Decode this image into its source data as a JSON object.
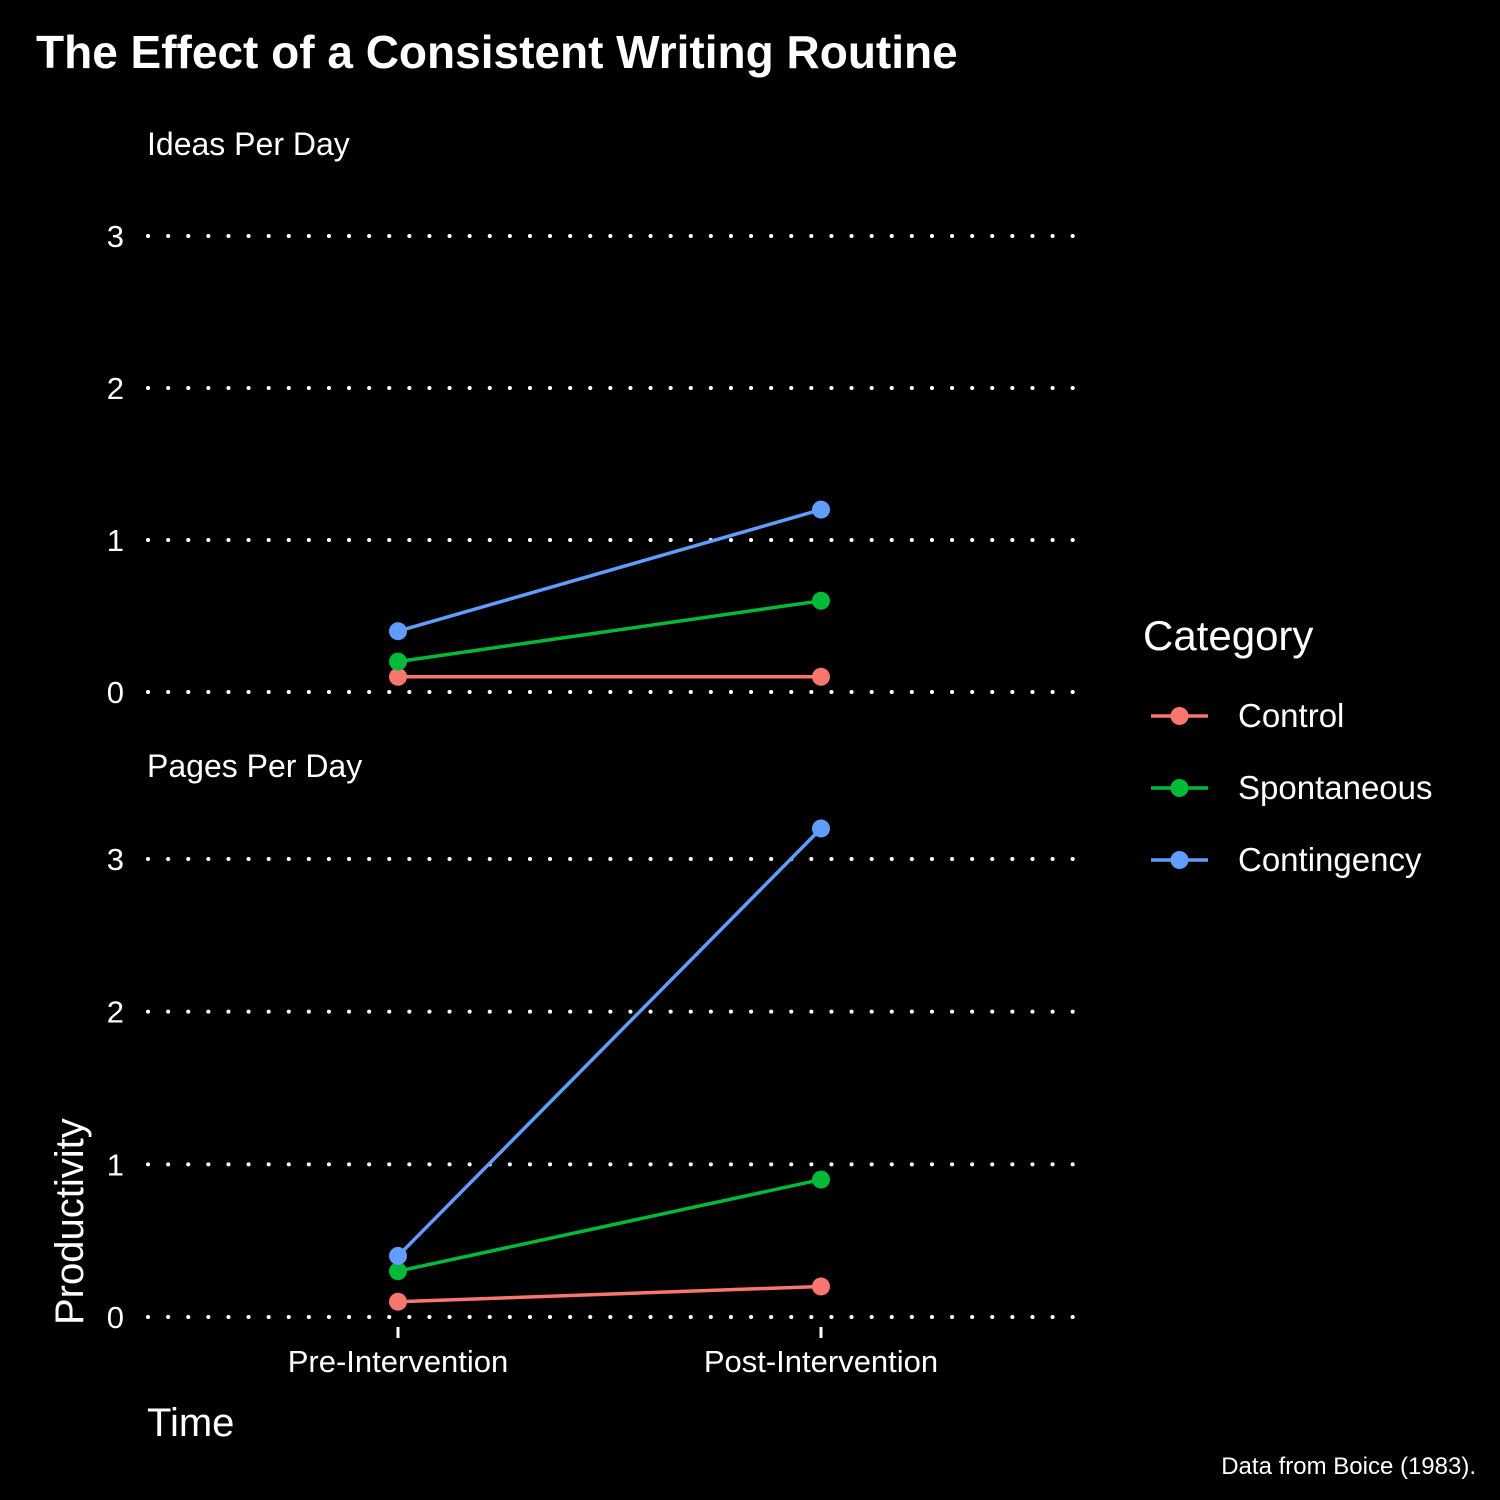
{
  "chart_data": {
    "type": "line",
    "title": "The Effect of a Consistent Writing Routine",
    "xlabel": "Time",
    "ylabel": "Productivity",
    "caption": "Data from Boice (1983).",
    "categories": [
      "Pre-Intervention",
      "Post-Intervention"
    ],
    "legend": {
      "title": "Category",
      "position": "right"
    },
    "grid": true,
    "panels": [
      {
        "title": "Ideas Per Day",
        "ylim": [
          0,
          3
        ],
        "yticks": [
          0,
          1,
          2,
          3
        ],
        "series": [
          {
            "name": "Control",
            "color": "#F8766D",
            "values": [
              0.1,
              0.1
            ]
          },
          {
            "name": "Spontaneous",
            "color": "#00BA38",
            "values": [
              0.2,
              0.6
            ]
          },
          {
            "name": "Contingency",
            "color": "#619CFF",
            "values": [
              0.4,
              1.2
            ]
          }
        ]
      },
      {
        "title": "Pages Per Day",
        "ylim": [
          0,
          3
        ],
        "yticks": [
          0,
          1,
          2,
          3
        ],
        "series": [
          {
            "name": "Control",
            "color": "#F8766D",
            "values": [
              0.1,
              0.2
            ]
          },
          {
            "name": "Spontaneous",
            "color": "#00BA38",
            "values": [
              0.3,
              0.9
            ]
          },
          {
            "name": "Contingency",
            "color": "#619CFF",
            "values": [
              0.4,
              3.2
            ]
          }
        ]
      }
    ]
  }
}
